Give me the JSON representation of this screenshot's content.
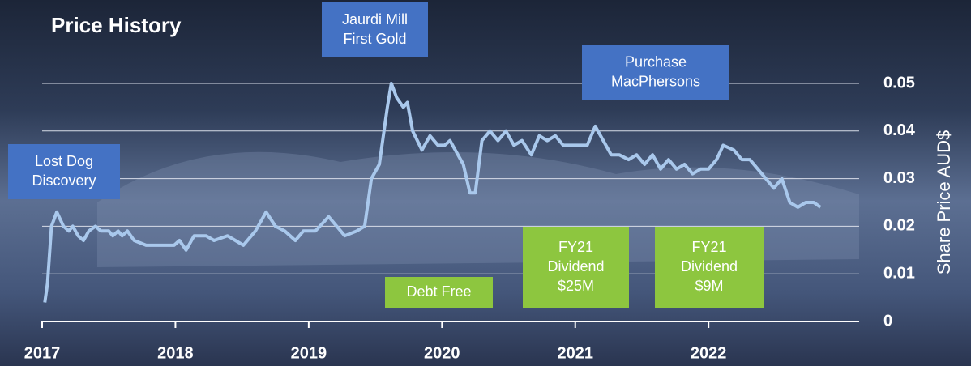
{
  "chart_data": {
    "type": "line",
    "title": "Price History",
    "y_label": "Share Price AUD$",
    "x": [
      2017.02,
      2017.04,
      2017.07,
      2017.11,
      2017.16,
      2017.2,
      2017.23,
      2017.27,
      2017.31,
      2017.35,
      2017.4,
      2017.44,
      2017.5,
      2017.53,
      2017.57,
      2017.6,
      2017.64,
      2017.69,
      2017.78,
      2017.9,
      2017.99,
      2018.03,
      2018.08,
      2018.14,
      2018.23,
      2018.29,
      2018.39,
      2018.45,
      2018.51,
      2018.6,
      2018.68,
      2018.75,
      2018.82,
      2018.9,
      2018.96,
      2019.05,
      2019.15,
      2019.21,
      2019.27,
      2019.36,
      2019.42,
      2019.47,
      2019.53,
      2019.59,
      2019.62,
      2019.66,
      2019.71,
      2019.74,
      2019.78,
      2019.85,
      2019.91,
      2019.97,
      2020.02,
      2020.06,
      2020.12,
      2020.16,
      2020.21,
      2020.25,
      2020.3,
      2020.36,
      2020.42,
      2020.48,
      2020.54,
      2020.6,
      2020.67,
      2020.73,
      2020.79,
      2020.85,
      2020.91,
      2021.0,
      2021.09,
      2021.15,
      2021.21,
      2021.27,
      2021.33,
      2021.4,
      2021.46,
      2021.52,
      2021.58,
      2021.64,
      2021.7,
      2021.76,
      2021.82,
      2021.88,
      2021.94,
      2022.0,
      2022.06,
      2022.11,
      2022.19,
      2022.25,
      2022.31,
      2022.37,
      2022.43,
      2022.49,
      2022.55,
      2022.61,
      2022.67,
      2022.73,
      2022.79,
      2022.84
    ],
    "series": [
      {
        "color": "#a9c8ec",
        "values": [
          0.004,
          0.008,
          0.02,
          0.023,
          0.02,
          0.019,
          0.02,
          0.018,
          0.017,
          0.019,
          0.02,
          0.019,
          0.019,
          0.018,
          0.019,
          0.018,
          0.019,
          0.017,
          0.016,
          0.016,
          0.016,
          0.017,
          0.015,
          0.018,
          0.018,
          0.017,
          0.018,
          0.017,
          0.016,
          0.019,
          0.023,
          0.02,
          0.019,
          0.017,
          0.019,
          0.019,
          0.022,
          0.02,
          0.018,
          0.019,
          0.02,
          0.03,
          0.033,
          0.045,
          0.05,
          0.047,
          0.045,
          0.046,
          0.04,
          0.036,
          0.039,
          0.037,
          0.037,
          0.038,
          0.035,
          0.033,
          0.027,
          0.027,
          0.038,
          0.04,
          0.038,
          0.04,
          0.037,
          0.038,
          0.035,
          0.039,
          0.038,
          0.039,
          0.037,
          0.037,
          0.037,
          0.041,
          0.038,
          0.035,
          0.035,
          0.034,
          0.035,
          0.033,
          0.035,
          0.032,
          0.034,
          0.032,
          0.033,
          0.031,
          0.032,
          0.032,
          0.034,
          0.037,
          0.036,
          0.034,
          0.034,
          0.032,
          0.03,
          0.028,
          0.03,
          0.025,
          0.024,
          0.025,
          0.025,
          0.024
        ]
      }
    ],
    "xlim": [
      2017,
      2023.13
    ],
    "xticks": [
      2017,
      2018,
      2019,
      2020,
      2021,
      2022
    ],
    "ylim": [
      0,
      0.05
    ],
    "yticks": [
      0,
      0.01,
      0.02,
      0.03,
      0.04,
      0.05
    ],
    "grid": true,
    "annotations": [
      {
        "lines": [
          "Lost Dog",
          "Discovery"
        ],
        "color": "#4472c4"
      },
      {
        "lines": [
          "Jaurdi Mill",
          "First Gold"
        ],
        "color": "#4472c4"
      },
      {
        "lines": [
          "Purchase",
          "MacPhersons"
        ],
        "color": "#4472c4"
      },
      {
        "lines": [
          "Debt Free"
        ],
        "color": "#8dc63f"
      },
      {
        "lines": [
          "FY21",
          "Dividend",
          "$25M"
        ],
        "color": "#8dc63f"
      },
      {
        "lines": [
          "FY21",
          "Dividend",
          "$9M"
        ],
        "color": "#8dc63f"
      }
    ]
  }
}
